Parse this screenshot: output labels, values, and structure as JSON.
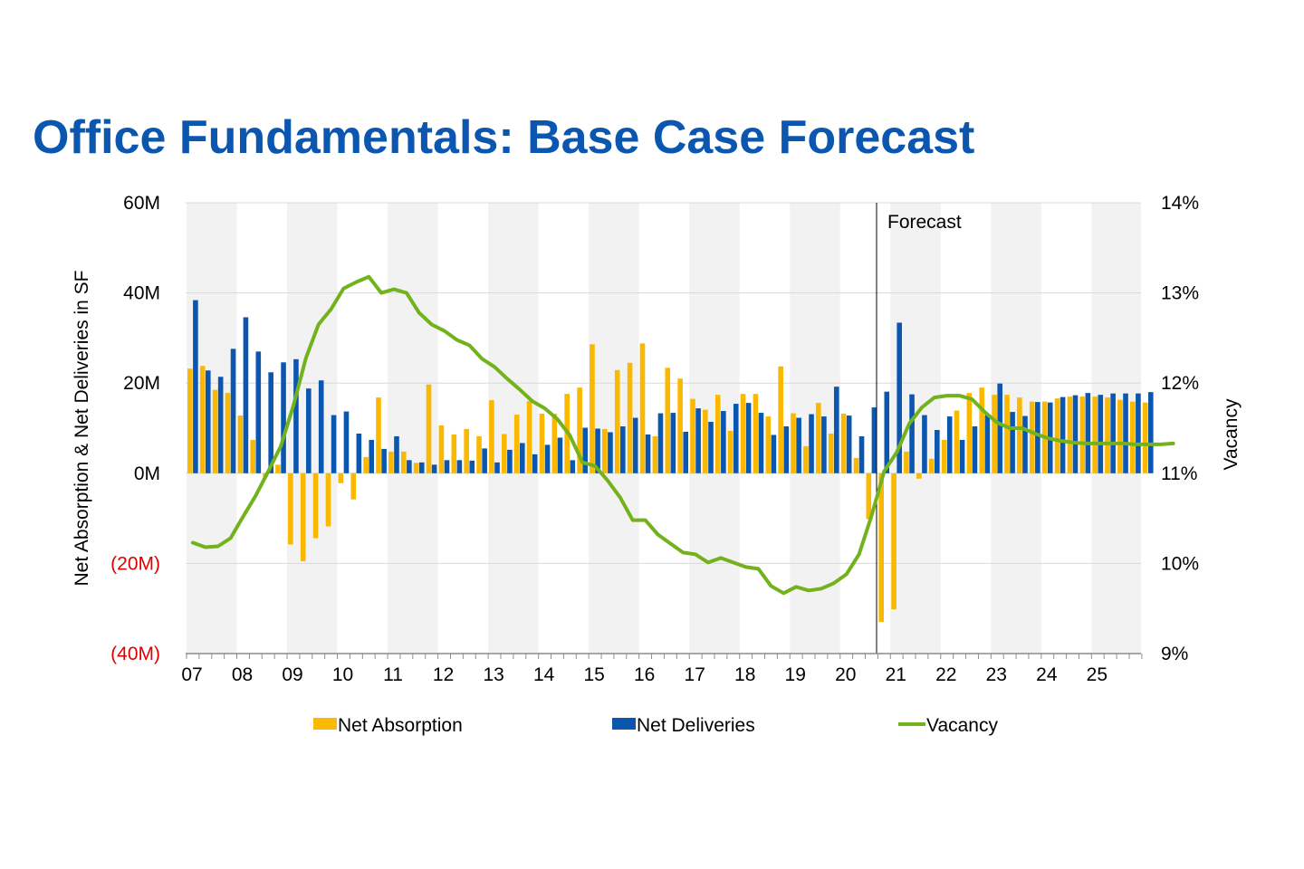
{
  "title": "Office Fundamentals: Base Case Forecast",
  "colors": {
    "title": "#0b57b0",
    "net_absorption": "#fbb800",
    "net_deliveries": "#0b57b0",
    "vacancy": "#72b21d",
    "band": "#f2f2f2",
    "negative_tick": "#e00000"
  },
  "chart_data": {
    "type": "bar",
    "title": "Office Fundamentals: Base Case Forecast",
    "ylabel": "Net Absorption & Net Deliveries in SF",
    "y2label": "Vacancy",
    "ylim": [
      -40,
      60
    ],
    "y2lim": [
      9,
      14
    ],
    "y_ticks": [
      "60M",
      "40M",
      "20M",
      "0M",
      "(20M)",
      "(40M)"
    ],
    "y2_ticks": [
      "14%",
      "13%",
      "12%",
      "11%",
      "10%",
      "9%"
    ],
    "x_ticks": [
      "07",
      "08",
      "09",
      "10",
      "11",
      "12",
      "13",
      "14",
      "15",
      "16",
      "17",
      "18",
      "19",
      "20",
      "21",
      "22",
      "23",
      "24",
      "25"
    ],
    "quarters_per_year": 4,
    "forecast_label": "Forecast",
    "forecast_start": "2020 Q4",
    "legend": [
      "Net Absorption",
      "Net Deliveries",
      "Vacancy"
    ],
    "legend_position": "bottom",
    "series": [
      {
        "name": "Net Absorption",
        "kind": "bar",
        "unit": "M SF",
        "values": [
          23.2,
          23.8,
          18.5,
          17.8,
          12.8,
          7.4,
          -0.8,
          1.9,
          -15.8,
          -19.5,
          -14.4,
          -11.8,
          -2.2,
          -5.8,
          3.6,
          16.8,
          4.8,
          4.8,
          2.3,
          19.7,
          10.6,
          8.6,
          9.8,
          8.2,
          16.2,
          8.7,
          13.0,
          16.0,
          13.2,
          13.2,
          17.6,
          19.0,
          28.6,
          9.8,
          22.9,
          24.5,
          28.8,
          8.2,
          23.4,
          21.0,
          16.5,
          14.1,
          17.4,
          9.4,
          17.6,
          17.6,
          12.6,
          23.7,
          13.3,
          6.0,
          15.6,
          8.8,
          13.2,
          3.4,
          -10.2,
          -33.0,
          -30.2,
          4.8,
          -1.2,
          3.2,
          7.4,
          13.9,
          17.8,
          19.0,
          17.4,
          17.4,
          16.8,
          15.9,
          15.9,
          16.6,
          17.0,
          17.0,
          17.0,
          16.8,
          16.3,
          15.9,
          15.7
        ]
      },
      {
        "name": "Net Deliveries",
        "kind": "bar",
        "unit": "M SF",
        "values": [
          38.4,
          22.8,
          21.4,
          27.6,
          34.6,
          27.0,
          22.4,
          24.6,
          25.3,
          18.8,
          20.6,
          12.9,
          13.7,
          8.8,
          7.4,
          5.4,
          8.2,
          2.9,
          2.4,
          1.9,
          2.9,
          2.9,
          2.8,
          5.5,
          2.4,
          5.2,
          6.7,
          4.2,
          6.3,
          7.9,
          2.9,
          10.1,
          9.9,
          9.1,
          10.4,
          12.3,
          8.6,
          13.3,
          13.4,
          9.2,
          14.4,
          11.4,
          13.8,
          15.4,
          15.6,
          13.4,
          8.5,
          10.4,
          12.3,
          13.1,
          12.6,
          19.2,
          12.8,
          8.2,
          14.6,
          18.1,
          33.4,
          17.5,
          12.9,
          9.6,
          12.6,
          7.4,
          10.4,
          12.9,
          19.9,
          13.6,
          12.7,
          15.8,
          15.7,
          16.9,
          17.3,
          17.8,
          17.4,
          17.7,
          17.7,
          17.7,
          18.0
        ]
      },
      {
        "name": "Vacancy",
        "kind": "line",
        "unit": "%",
        "values": [
          10.23,
          10.18,
          10.19,
          10.28,
          10.52,
          10.75,
          11.02,
          11.3,
          11.75,
          12.28,
          12.65,
          12.82,
          13.05,
          13.12,
          13.18,
          13.0,
          13.04,
          13.0,
          12.78,
          12.65,
          12.58,
          12.48,
          12.42,
          12.27,
          12.18,
          12.05,
          11.93,
          11.8,
          11.72,
          11.6,
          11.42,
          11.12,
          11.08,
          10.92,
          10.73,
          10.48,
          10.48,
          10.32,
          10.22,
          10.12,
          10.1,
          10.01,
          10.06,
          10.01,
          9.96,
          9.94,
          9.75,
          9.67,
          9.74,
          9.7,
          9.72,
          9.78,
          9.88,
          10.1,
          10.53,
          11.02,
          11.23,
          11.55,
          11.73,
          11.84,
          11.86,
          11.86,
          11.82,
          11.68,
          11.56,
          11.5,
          11.5,
          11.44,
          11.39,
          11.36,
          11.34,
          11.33,
          11.33,
          11.33,
          11.33,
          11.32,
          11.32,
          11.32,
          11.33
        ]
      }
    ]
  }
}
